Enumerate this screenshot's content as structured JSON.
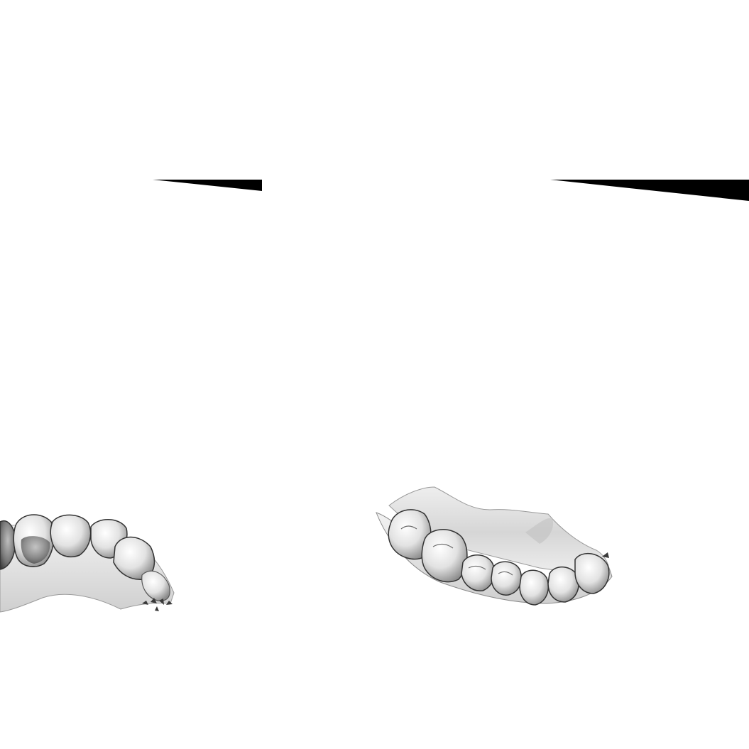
{
  "scene": {
    "background_color": "#ffffff",
    "wedge_color": "#000000",
    "model_colors": {
      "light": "#f4f4f4",
      "mid": "#c9c9c9",
      "dark": "#5a5a5a",
      "outline": "#3a3a3a"
    }
  },
  "panels": [
    {
      "name": "left-panel",
      "wedge": "tapered-black-wedge",
      "model": "dental-arch-scan-partial"
    },
    {
      "name": "right-panel",
      "wedge": "tapered-black-wedge",
      "model": "upper-dental-arch-scan"
    }
  ]
}
